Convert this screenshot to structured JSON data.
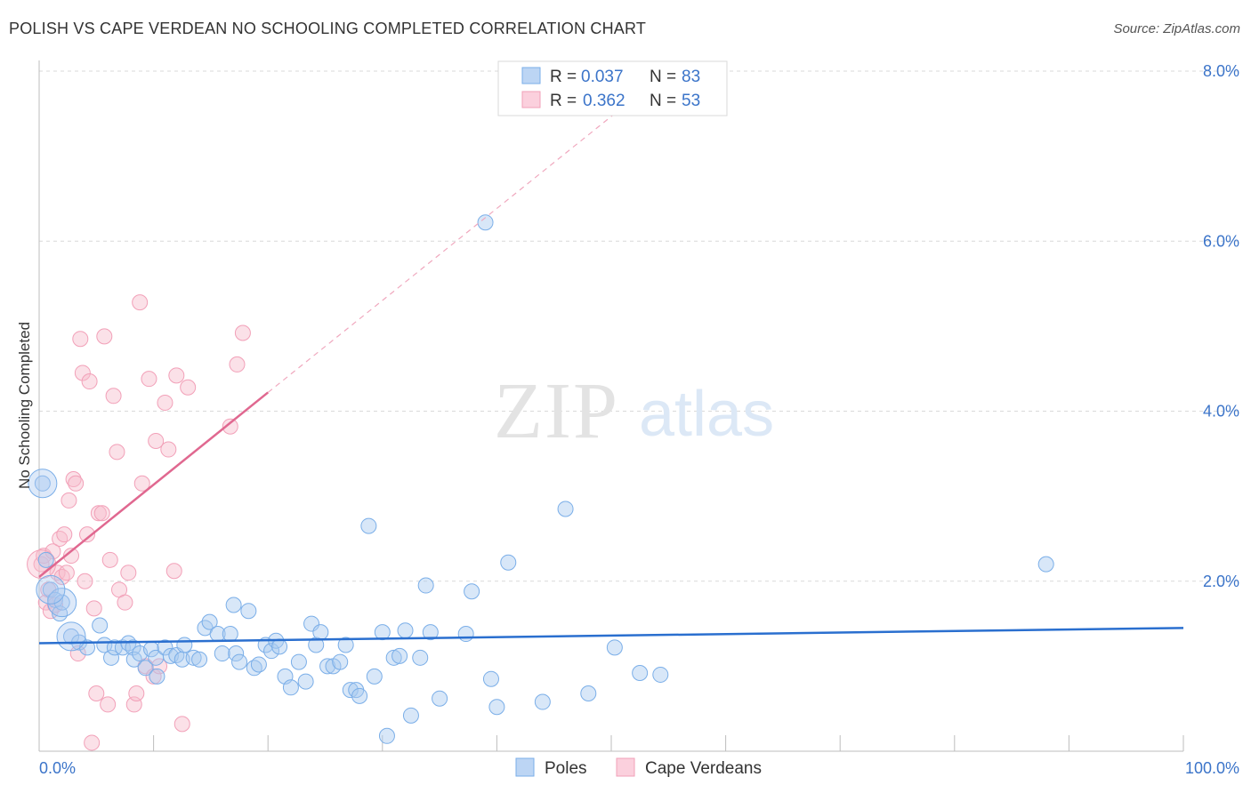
{
  "title": "POLISH VS CAPE VERDEAN NO SCHOOLING COMPLETED CORRELATION CHART",
  "source": "Source: ZipAtlas.com",
  "chart_data": {
    "type": "scatter",
    "ylabel": "No Schooling Completed",
    "xlabel": "",
    "xlim": [
      0,
      100
    ],
    "ylim": [
      0,
      8.0
    ],
    "x_tick_labels": {
      "min": "0.0%",
      "max": "100.0%"
    },
    "y_ticks": [
      {
        "value": 2.0,
        "label": "2.0%"
      },
      {
        "value": 4.0,
        "label": "4.0%"
      },
      {
        "value": 6.0,
        "label": "6.0%"
      },
      {
        "value": 8.0,
        "label": "8.0%"
      }
    ],
    "watermark": {
      "zip": "ZIP",
      "atlas": "atlas"
    },
    "colors": {
      "poles": "#7aaee8",
      "poles_line": "#2a6fcf",
      "cape": "#f2a0b8",
      "cape_line": "#e06890",
      "axis_text": "#3b74c9"
    },
    "legend": [
      {
        "r_label": "R =",
        "r_value": "0.037",
        "n_label": "N =",
        "n_value": "83"
      },
      {
        "r_label": "R =",
        "r_value": "0.362",
        "n_label": "N =",
        "n_value": "53"
      }
    ],
    "bottom_legend": [
      "Poles",
      "Cape Verdeans"
    ],
    "series": [
      {
        "name": "Poles",
        "trend": {
          "x0": 0,
          "y0": 1.27,
          "x1": 100,
          "y1": 1.45
        },
        "points": [
          [
            0.3,
            3.15
          ],
          [
            0.6,
            2.25
          ],
          [
            1.0,
            1.9
          ],
          [
            1.4,
            1.78
          ],
          [
            1.8,
            1.62
          ],
          [
            2.0,
            1.75
          ],
          [
            2.8,
            1.35
          ],
          [
            3.5,
            1.28
          ],
          [
            4.2,
            1.22
          ],
          [
            5.3,
            1.48
          ],
          [
            5.7,
            1.25
          ],
          [
            6.3,
            1.1
          ],
          [
            6.6,
            1.22
          ],
          [
            7.3,
            1.22
          ],
          [
            7.8,
            1.27
          ],
          [
            8.2,
            1.22
          ],
          [
            8.3,
            1.08
          ],
          [
            8.8,
            1.15
          ],
          [
            9.3,
            0.98
          ],
          [
            9.8,
            1.2
          ],
          [
            10.2,
            1.1
          ],
          [
            10.3,
            0.88
          ],
          [
            11.0,
            1.22
          ],
          [
            11.5,
            1.12
          ],
          [
            12.0,
            1.13
          ],
          [
            12.5,
            1.08
          ],
          [
            12.7,
            1.25
          ],
          [
            13.5,
            1.1
          ],
          [
            14.0,
            1.08
          ],
          [
            14.5,
            1.45
          ],
          [
            14.9,
            1.52
          ],
          [
            15.6,
            1.38
          ],
          [
            16.0,
            1.15
          ],
          [
            16.7,
            1.38
          ],
          [
            17.0,
            1.72
          ],
          [
            17.2,
            1.15
          ],
          [
            17.5,
            1.05
          ],
          [
            18.3,
            1.65
          ],
          [
            18.8,
            0.98
          ],
          [
            19.2,
            1.02
          ],
          [
            19.8,
            1.25
          ],
          [
            20.3,
            1.18
          ],
          [
            20.7,
            1.3
          ],
          [
            21.0,
            1.23
          ],
          [
            21.5,
            0.88
          ],
          [
            22.0,
            0.75
          ],
          [
            22.7,
            1.05
          ],
          [
            23.3,
            0.82
          ],
          [
            23.8,
            1.5
          ],
          [
            24.2,
            1.25
          ],
          [
            24.6,
            1.4
          ],
          [
            25.2,
            1.0
          ],
          [
            25.7,
            1.0
          ],
          [
            26.3,
            1.05
          ],
          [
            26.8,
            1.25
          ],
          [
            27.2,
            0.72
          ],
          [
            27.7,
            0.72
          ],
          [
            28.0,
            0.65
          ],
          [
            28.8,
            2.65
          ],
          [
            29.3,
            0.88
          ],
          [
            30.0,
            1.4
          ],
          [
            30.4,
            0.18
          ],
          [
            31.0,
            1.1
          ],
          [
            31.5,
            1.12
          ],
          [
            32.0,
            1.42
          ],
          [
            32.5,
            0.42
          ],
          [
            33.3,
            1.1
          ],
          [
            33.8,
            1.95
          ],
          [
            34.2,
            1.4
          ],
          [
            35.0,
            0.62
          ],
          [
            37.3,
            1.38
          ],
          [
            37.8,
            1.88
          ],
          [
            39.0,
            6.22
          ],
          [
            39.5,
            0.85
          ],
          [
            40.0,
            0.52
          ],
          [
            41.0,
            2.22
          ],
          [
            44.0,
            0.58
          ],
          [
            46.0,
            2.85
          ],
          [
            48.0,
            0.68
          ],
          [
            50.3,
            1.22
          ],
          [
            52.5,
            0.92
          ],
          [
            54.3,
            0.9
          ],
          [
            88.0,
            2.2
          ]
        ],
        "big_points": [
          [
            0.3,
            3.15
          ],
          [
            2.0,
            1.75
          ],
          [
            2.8,
            1.35
          ],
          [
            1.0,
            1.9
          ]
        ]
      },
      {
        "name": "Cape Verdeans",
        "trend": {
          "x0": 0,
          "y0": 2.05,
          "x1": 20,
          "y1": 4.22
        },
        "trend_ext": {
          "x0": 20,
          "y0": 4.22,
          "x1": 54,
          "y1": 7.9
        },
        "points": [
          [
            0.2,
            2.2
          ],
          [
            0.4,
            2.3
          ],
          [
            0.6,
            1.75
          ],
          [
            0.8,
            1.9
          ],
          [
            1.0,
            1.65
          ],
          [
            1.2,
            2.35
          ],
          [
            1.4,
            1.72
          ],
          [
            1.6,
            2.1
          ],
          [
            1.8,
            2.5
          ],
          [
            2.0,
            2.05
          ],
          [
            2.2,
            2.55
          ],
          [
            2.4,
            2.1
          ],
          [
            2.6,
            2.95
          ],
          [
            2.8,
            2.3
          ],
          [
            3.0,
            3.2
          ],
          [
            3.2,
            3.15
          ],
          [
            3.4,
            1.15
          ],
          [
            3.6,
            4.85
          ],
          [
            3.8,
            4.45
          ],
          [
            4.0,
            2.0
          ],
          [
            4.2,
            2.55
          ],
          [
            4.4,
            4.35
          ],
          [
            4.6,
            0.1
          ],
          [
            4.8,
            1.68
          ],
          [
            5.0,
            0.68
          ],
          [
            5.2,
            2.8
          ],
          [
            5.5,
            2.8
          ],
          [
            5.7,
            4.88
          ],
          [
            6.0,
            0.55
          ],
          [
            6.2,
            2.25
          ],
          [
            6.5,
            4.18
          ],
          [
            6.8,
            3.52
          ],
          [
            7.0,
            1.9
          ],
          [
            7.5,
            1.75
          ],
          [
            7.8,
            2.1
          ],
          [
            8.3,
            0.55
          ],
          [
            8.5,
            0.68
          ],
          [
            8.8,
            5.28
          ],
          [
            9.0,
            3.15
          ],
          [
            9.3,
            1.0
          ],
          [
            9.6,
            4.38
          ],
          [
            10.0,
            0.88
          ],
          [
            10.2,
            3.65
          ],
          [
            10.5,
            1.0
          ],
          [
            11.0,
            4.1
          ],
          [
            11.3,
            3.55
          ],
          [
            11.8,
            2.12
          ],
          [
            12.0,
            4.42
          ],
          [
            12.5,
            0.32
          ],
          [
            13.0,
            4.28
          ],
          [
            16.7,
            3.82
          ],
          [
            17.3,
            4.55
          ],
          [
            17.8,
            4.92
          ]
        ],
        "big_points": [
          [
            0.2,
            2.2
          ]
        ]
      }
    ]
  }
}
